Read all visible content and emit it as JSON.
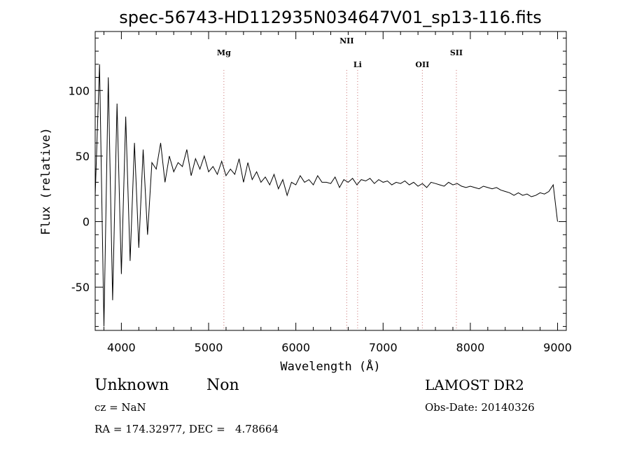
{
  "chart_data": {
    "type": "line",
    "title": "spec-56743-HD112935N034647V01_sp13-116.fits",
    "xlabel": "Wavelength (Å)",
    "ylabel": "Flux (relative)",
    "xlim": [
      3700,
      9100
    ],
    "ylim": [
      -83,
      145
    ],
    "xticks": [
      4000,
      5000,
      6000,
      7000,
      8000,
      9000
    ],
    "yticks": [
      -50,
      0,
      50,
      100
    ],
    "grid": false,
    "spectral_lines": [
      {
        "name": "Mg",
        "wavelength": 5175
      },
      {
        "name": "NII",
        "wavelength": 6583
      },
      {
        "name": "Li",
        "wavelength": 6708
      },
      {
        "name": "OII",
        "wavelength": 7450
      },
      {
        "name": "SII",
        "wavelength": 7840
      }
    ],
    "series": [
      {
        "x": [
          3700,
          3750,
          3800,
          3850,
          3900,
          3950,
          4000,
          4050,
          4100,
          4150,
          4200,
          4250,
          4300,
          4350,
          4400,
          4450,
          4500,
          4550,
          4600,
          4650,
          4700,
          4750,
          4800,
          4850,
          4900,
          4950,
          5000,
          5050,
          5100,
          5150,
          5200,
          5250,
          5300,
          5350,
          5400,
          5450,
          5500,
          5550,
          5600,
          5650,
          5700,
          5750,
          5800,
          5850,
          5900,
          5950,
          6000,
          6050,
          6100,
          6150,
          6200,
          6250,
          6300,
          6350,
          6400,
          6450,
          6500,
          6550,
          6600,
          6650,
          6700,
          6750,
          6800,
          6850,
          6900,
          6950,
          7000,
          7050,
          7100,
          7150,
          7200,
          7250,
          7300,
          7350,
          7400,
          7450,
          7500,
          7550,
          7600,
          7650,
          7700,
          7750,
          7800,
          7850,
          7900,
          7950,
          8000,
          8050,
          8100,
          8150,
          8200,
          8250,
          8300,
          8350,
          8400,
          8450,
          8500,
          8550,
          8600,
          8650,
          8700,
          8750,
          8800,
          8850,
          8900,
          8950,
          9000
        ],
        "y": [
          20,
          120,
          -80,
          110,
          -60,
          90,
          -40,
          80,
          -30,
          60,
          -20,
          55,
          -10,
          45,
          40,
          60,
          30,
          50,
          38,
          45,
          42,
          55,
          35,
          48,
          40,
          50,
          38,
          42,
          36,
          46,
          35,
          40,
          36,
          48,
          30,
          45,
          32,
          38,
          30,
          34,
          28,
          36,
          25,
          32,
          20,
          30,
          28,
          35,
          30,
          32,
          28,
          35,
          30,
          30,
          29,
          34,
          26,
          32,
          30,
          33,
          28,
          32,
          31,
          33,
          29,
          32,
          30,
          31,
          28,
          30,
          29,
          31,
          28,
          30,
          27,
          29,
          26,
          30,
          29,
          28,
          27,
          30,
          28,
          29,
          27,
          26,
          27,
          26,
          25,
          27,
          26,
          25,
          26,
          24,
          23,
          22,
          20,
          22,
          20,
          21,
          19,
          20,
          22,
          21,
          23,
          28,
          0
        ]
      }
    ]
  },
  "info": {
    "class": "Unknown",
    "subclass": "Non",
    "survey": "LAMOST DR2",
    "redshift": "cz = NaN",
    "obsdate": "Obs-Date: 20140326",
    "coords": "RA = 174.32977, DEC =   4.78664"
  }
}
